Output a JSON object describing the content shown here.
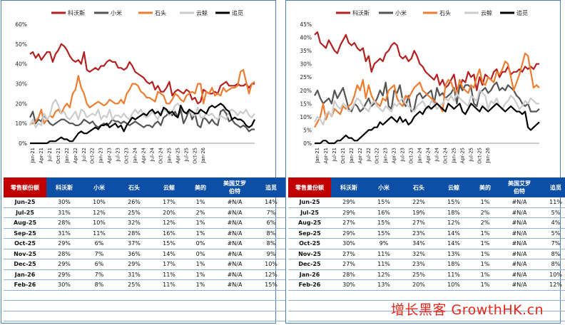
{
  "chart_data": [
    {
      "type": "line",
      "ylabel": "",
      "xlabel": "",
      "ylim": [
        0,
        60
      ],
      "yticks": [
        "0%",
        "10%",
        "20%",
        "30%",
        "40%",
        "50%",
        "60%"
      ],
      "xticks": [
        "Jan-21",
        "Apr-21",
        "Jul-21",
        "Oct-21",
        "Jan-22",
        "Apr-22",
        "Jul-22",
        "Oct-22",
        "Jan-23",
        "Apr-23",
        "Jul-23",
        "Oct-23",
        "Jan-24",
        "Apr-24",
        "Jul-24",
        "Oct-24",
        "Jan-25",
        "Apr-25",
        "Jul-25",
        "Oct-25",
        "Jan-26"
      ],
      "legend_position": "top",
      "series": [
        {
          "name": "科沃斯",
          "color": "#b22222",
          "values": [
            45,
            46,
            43,
            45,
            42,
            44,
            46,
            46,
            41,
            45,
            47,
            50,
            49,
            47,
            44,
            42,
            41,
            42,
            40,
            46,
            37,
            36,
            37,
            38,
            37,
            39,
            39,
            41,
            42,
            41,
            41,
            38,
            38,
            37,
            38,
            41,
            39,
            36,
            35,
            34,
            33,
            31,
            30,
            31,
            27,
            29,
            26,
            26,
            28,
            31,
            24,
            26,
            27,
            26,
            25,
            27,
            26,
            22,
            23,
            20,
            21,
            27,
            26,
            25,
            25,
            26,
            25,
            29,
            30,
            31,
            29,
            29,
            29,
            30,
            29,
            29,
            30,
            28,
            30,
            30
          ]
        },
        {
          "name": "小米",
          "color": "#555555",
          "values": [
            13,
            16,
            10,
            12,
            11,
            14,
            12,
            10,
            9,
            10,
            11,
            12,
            12,
            11,
            10,
            10,
            9,
            9,
            10,
            12,
            11,
            10,
            11,
            9,
            8,
            9,
            10,
            9,
            10,
            12,
            11,
            11,
            10,
            11,
            10,
            9,
            10,
            11,
            10,
            9,
            8,
            9,
            9,
            8,
            10,
            11,
            9,
            13,
            14,
            16,
            14,
            16,
            13,
            17,
            10,
            13,
            17,
            12,
            15,
            9,
            8,
            13,
            12,
            10,
            12,
            10,
            9,
            16,
            17,
            15,
            11,
            12,
            10,
            9,
            8,
            9,
            8,
            6,
            7,
            7
          ]
        },
        {
          "name": "石头",
          "color": "#ed7d31",
          "values": [
            10,
            10,
            11,
            13,
            17,
            10,
            12,
            14,
            13,
            16,
            17,
            15,
            18,
            20,
            18,
            25,
            27,
            34,
            28,
            25,
            20,
            18,
            19,
            20,
            21,
            20,
            19,
            20,
            22,
            21,
            20,
            20,
            22,
            20,
            25,
            27,
            30,
            30,
            29,
            26,
            25,
            23,
            23,
            22,
            21,
            26,
            25,
            24,
            20,
            20,
            22,
            25,
            24,
            22,
            21,
            24,
            25,
            26,
            25,
            30,
            30,
            20,
            26,
            25,
            28,
            24,
            25,
            24,
            28,
            26,
            27,
            28,
            28,
            29,
            36,
            37,
            31,
            25,
            30,
            31
          ]
        },
        {
          "name": "云鲸",
          "color": "#cccccc",
          "values": [
            9,
            12,
            8,
            10,
            9,
            15,
            12,
            14,
            20,
            22,
            19,
            15,
            16,
            13,
            12,
            14,
            16,
            12,
            17,
            16,
            13,
            14,
            15,
            14,
            17,
            12,
            14,
            13,
            17,
            12,
            14,
            14,
            13,
            15,
            13,
            12,
            15,
            17,
            15,
            17,
            14,
            13,
            14,
            16,
            14,
            12,
            16,
            17,
            16,
            14,
            16,
            19,
            20,
            18,
            16,
            15,
            17,
            14,
            14,
            18,
            13,
            13,
            15,
            14,
            15,
            13,
            12,
            14,
            13,
            12,
            16,
            17,
            16,
            14,
            16,
            15,
            17,
            14,
            13,
            15
          ]
        },
        {
          "name": "追觅",
          "color": "#000000",
          "values": [
            0,
            0,
            0,
            0,
            0,
            0,
            0,
            1,
            1,
            1,
            2,
            3,
            2,
            2,
            1,
            1,
            3,
            5,
            6,
            5,
            5,
            6,
            7,
            8,
            7,
            9,
            9,
            10,
            8,
            9,
            10,
            8,
            9,
            6,
            9,
            11,
            13,
            12,
            13,
            14,
            15,
            14,
            16,
            17,
            15,
            16,
            14,
            18,
            17,
            15,
            16,
            14,
            13,
            19,
            16,
            15,
            17,
            16,
            15,
            15,
            17,
            16,
            15,
            18,
            19,
            18,
            19,
            20,
            19,
            17,
            16,
            12,
            13,
            12,
            12,
            11,
            9,
            8,
            9,
            12
          ]
        }
      ]
    },
    {
      "type": "line",
      "ylabel": "",
      "xlabel": "",
      "ylim": [
        0,
        45
      ],
      "yticks": [
        "0%",
        "5%",
        "10%",
        "15%",
        "20%",
        "25%",
        "30%",
        "35%",
        "40%",
        "45%"
      ],
      "xticks": [
        "Jan-21",
        "Apr-21",
        "Jul-21",
        "Oct-21",
        "Jan-22",
        "Apr-22",
        "Jul-22",
        "Oct-22",
        "Jan-23",
        "Apr-23",
        "Jul-23",
        "Oct-23",
        "Jan-24",
        "Apr-24",
        "Jul-24",
        "Oct-24",
        "Jan-25",
        "Apr-25",
        "Jul-25",
        "Oct-25",
        "Jan-26"
      ],
      "legend_position": "top",
      "series": [
        {
          "name": "科沃斯",
          "color": "#b22222",
          "values": [
            41,
            42,
            38,
            37,
            36,
            39,
            37,
            35,
            34,
            37,
            39,
            41,
            38,
            37,
            38,
            36,
            35,
            36,
            31,
            33,
            27,
            30,
            31,
            32,
            31,
            34,
            35,
            37,
            38,
            37,
            33,
            32,
            33,
            31,
            32,
            35,
            33,
            30,
            29,
            27,
            26,
            25,
            24,
            26,
            22,
            24,
            21,
            22,
            24,
            26,
            20,
            21,
            24,
            23,
            27,
            25,
            26,
            20,
            25,
            22,
            26,
            25,
            24,
            27,
            28,
            25,
            27,
            27,
            29,
            26,
            27,
            27,
            28,
            27,
            29,
            28,
            29,
            28,
            30,
            30
          ]
        },
        {
          "name": "小米",
          "color": "#555555",
          "values": [
            18,
            20,
            17,
            15,
            16,
            17,
            15,
            20,
            17,
            19,
            21,
            17,
            13,
            12,
            15,
            14,
            12,
            13,
            15,
            17,
            14,
            15,
            17,
            20,
            18,
            23,
            14,
            13,
            20,
            19,
            22,
            16,
            14,
            18,
            12,
            13,
            18,
            19,
            17,
            18,
            19,
            20,
            15,
            21,
            18,
            19,
            17,
            18,
            19,
            21,
            15,
            22,
            20,
            22,
            22,
            21,
            15,
            14,
            19,
            20,
            21,
            19,
            20,
            22,
            23,
            20,
            21,
            20,
            22,
            21,
            20,
            18,
            17,
            15,
            14,
            15,
            12,
            12,
            12,
            13
          ]
        },
        {
          "name": "石头",
          "color": "#ed7d31",
          "values": [
            6,
            8,
            10,
            15,
            9,
            12,
            10,
            13,
            12,
            11,
            14,
            13,
            14,
            15,
            18,
            22,
            20,
            24,
            17,
            22,
            18,
            16,
            15,
            14,
            17,
            16,
            20,
            21,
            22,
            17,
            15,
            14,
            18,
            17,
            19,
            21,
            22,
            23,
            20,
            19,
            18,
            17,
            16,
            15,
            14,
            12,
            22,
            24,
            23,
            20,
            19,
            24,
            21,
            20,
            19,
            22,
            21,
            25,
            28,
            23,
            22,
            25,
            24,
            23,
            27,
            26,
            28,
            31,
            30,
            25,
            20,
            23,
            26,
            30,
            34,
            33,
            27,
            21,
            22,
            21
          ]
        },
        {
          "name": "云鲸",
          "color": "#cccccc",
          "values": [
            8,
            10,
            9,
            7,
            11,
            12,
            10,
            16,
            14,
            13,
            15,
            14,
            12,
            13,
            15,
            17,
            16,
            14,
            13,
            12,
            15,
            16,
            14,
            13,
            12,
            14,
            13,
            12,
            15,
            14,
            16,
            17,
            15,
            14,
            13,
            12,
            14,
            15,
            16,
            14,
            13,
            16,
            15,
            13,
            14,
            15,
            17,
            16,
            18,
            16,
            19,
            17,
            16,
            15,
            14,
            18,
            17,
            16,
            20,
            19,
            18,
            13,
            16,
            15,
            17,
            14,
            13,
            15,
            16,
            18,
            17,
            15,
            13,
            14,
            16,
            15,
            17,
            16,
            15,
            15
          ]
        },
        {
          "name": "追觅",
          "color": "#000000",
          "values": [
            0,
            0,
            0,
            1,
            1,
            0,
            0,
            0,
            1,
            1,
            2,
            3,
            2,
            2,
            1,
            1,
            2,
            3,
            4,
            5,
            5,
            6,
            6,
            8,
            7,
            8,
            9,
            10,
            9,
            8,
            10,
            8,
            9,
            7,
            8,
            10,
            11,
            12,
            11,
            13,
            14,
            13,
            14,
            15,
            14,
            13,
            12,
            15,
            14,
            13,
            14,
            15,
            12,
            11,
            13,
            15,
            14,
            13,
            12,
            14,
            13,
            12,
            13,
            14,
            15,
            14,
            13,
            12,
            13,
            14,
            13,
            12,
            12,
            11,
            12,
            6,
            5,
            6,
            7,
            8
          ]
        }
      ]
    }
  ],
  "tables": [
    {
      "headers": [
        "零售额份额",
        "科沃斯",
        "小米",
        "石头",
        "云鲸",
        "美的",
        "美国艾罗\n伯特",
        "追觅"
      ],
      "rows": [
        [
          "Jun-25",
          "30%",
          "10%",
          "26%",
          "17%",
          "1%",
          "#N/A",
          "14%"
        ],
        [
          "Jul-25",
          "31%",
          "12%",
          "25%",
          "20%",
          "2%",
          "#N/A",
          "7%"
        ],
        [
          "Aug-25",
          "28%",
          "10%",
          "32%",
          "12%",
          "1%",
          "#N/A",
          "6%"
        ],
        [
          "Sep-25",
          "31%",
          "11%",
          "28%",
          "16%",
          "1%",
          "#N/A",
          "8%"
        ],
        [
          "Oct-25",
          "29%",
          "6%",
          "37%",
          "15%",
          "0%",
          "#N/A",
          "8%"
        ],
        [
          "Nov-25",
          "28%",
          "7%",
          "36%",
          "14%",
          "0%",
          "#N/A",
          "9%"
        ],
        [
          "Dec-25",
          "29%",
          "6%",
          "29%",
          "17%",
          "1%",
          "#N/A",
          "10%"
        ],
        [
          "Jan-26",
          "29%",
          "7%",
          "31%",
          "11%",
          "1%",
          "#N/A",
          "12%"
        ],
        [
          "Feb-26",
          "30%",
          "8%",
          "25%",
          "11%",
          "1%",
          "#N/A",
          "15%"
        ]
      ]
    },
    {
      "headers": [
        "零售量份额",
        "科沃斯",
        "小米",
        "石头",
        "云鲸",
        "美的",
        "美国艾罗\n伯特",
        "追觅"
      ],
      "rows": [
        [
          "Jun-25",
          "29%",
          "15%",
          "22%",
          "15%",
          "1%",
          "#N/A",
          "11%"
        ],
        [
          "Jul-25",
          "29%",
          "16%",
          "19%",
          "18%",
          "2%",
          "#N/A",
          "5%"
        ],
        [
          "Aug-25",
          "27%",
          "15%",
          "27%",
          "12%",
          "2%",
          "#N/A",
          "4%"
        ],
        [
          "Sep-25",
          "29%",
          "15%",
          "23%",
          "14%",
          "1%",
          "#N/A",
          "5%"
        ],
        [
          "Oct-25",
          "30%",
          "9%",
          "34%",
          "14%",
          "1%",
          "#N/A",
          "7%"
        ],
        [
          "Nov-25",
          "27%",
          "11%",
          "32%",
          "13%",
          "1%",
          "#N/A",
          "8%"
        ],
        [
          "Dec-25",
          "27%",
          "11%",
          "23%",
          "18%",
          "1%",
          "#N/A",
          "8%"
        ],
        [
          "Jan-26",
          "28%",
          "12%",
          "25%",
          "11%",
          "1%",
          "#N/A",
          "10%"
        ],
        [
          "Feb-26",
          "30%",
          "13%",
          "20%",
          "10%",
          "1%",
          "#N/A",
          "12%"
        ]
      ]
    }
  ],
  "watermark": "增长黑客 GrowthHK.cn"
}
